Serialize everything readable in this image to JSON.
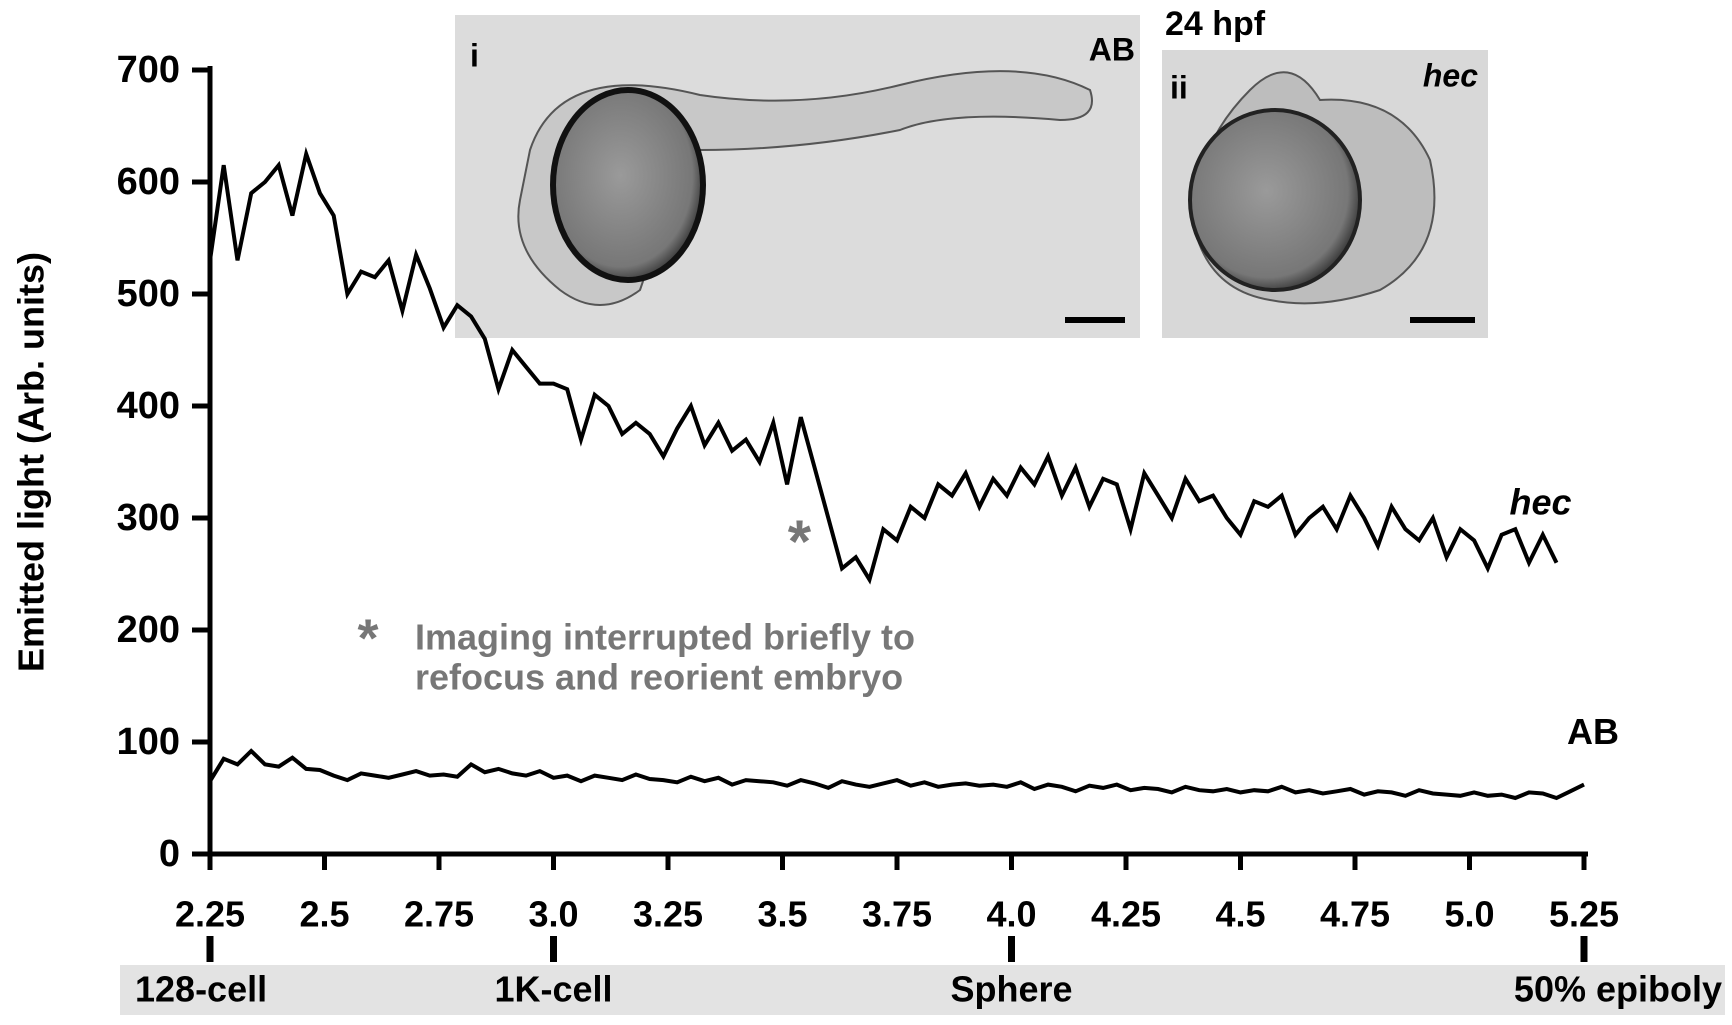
{
  "chart_data": {
    "type": "line",
    "ylabel": "Emitted light (Arb. units)",
    "x": [
      2.25,
      2.28,
      2.31,
      2.34,
      2.37,
      2.4,
      2.43,
      2.46,
      2.49,
      2.52,
      2.55,
      2.58,
      2.61,
      2.64,
      2.67,
      2.7,
      2.73,
      2.76,
      2.79,
      2.82,
      2.85,
      2.88,
      2.91,
      2.94,
      2.97,
      3,
      3.03,
      3.06,
      3.09,
      3.12,
      3.15,
      3.18,
      3.21,
      3.24,
      3.27,
      3.3,
      3.33,
      3.36,
      3.39,
      3.42,
      3.45,
      3.48,
      3.51,
      3.54,
      3.57,
      3.6,
      3.63,
      3.66,
      3.69,
      3.72,
      3.75,
      3.78,
      3.81,
      3.84,
      3.87,
      3.9,
      3.93,
      3.96,
      3.99,
      4.02,
      4.05,
      4.08,
      4.11,
      4.14,
      4.17,
      4.2,
      4.23,
      4.26,
      4.29,
      4.32,
      4.35,
      4.38,
      4.41,
      4.44,
      4.47,
      4.5,
      4.53,
      4.56,
      4.59,
      4.62,
      4.65,
      4.68,
      4.71,
      4.74,
      4.77,
      4.8,
      4.83,
      4.86,
      4.89,
      4.92,
      4.95,
      4.98,
      5.01,
      5.04,
      5.07,
      5.1,
      5.13,
      5.16,
      5.19,
      5.22,
      5.25
    ],
    "series": [
      {
        "name": "hec",
        "color": "#000000",
        "values": [
          530,
          615,
          530,
          590,
          600,
          615,
          570,
          625,
          590,
          570,
          500,
          520,
          515,
          530,
          485,
          535,
          505,
          470,
          490,
          480,
          460,
          415,
          450,
          435,
          420,
          420,
          415,
          370,
          410,
          400,
          375,
          385,
          375,
          355,
          380,
          400,
          365,
          385,
          360,
          370,
          350,
          385,
          330,
          390,
          345,
          300,
          255,
          265,
          245,
          290,
          280,
          310,
          300,
          330,
          320,
          340,
          310,
          335,
          320,
          345,
          330,
          355,
          320,
          345,
          310,
          335,
          330,
          290,
          340,
          320,
          300,
          335,
          315,
          320,
          300,
          285,
          315,
          310,
          320,
          285,
          300,
          310,
          290,
          320,
          300,
          275,
          310,
          290,
          280,
          300,
          265,
          290,
          280,
          255,
          285,
          290,
          260,
          285,
          260,
          null,
          null
        ]
      },
      {
        "name": "AB",
        "color": "#000000",
        "values": [
          65,
          85,
          80,
          92,
          80,
          78,
          86,
          76,
          75,
          70,
          66,
          72,
          70,
          68,
          71,
          74,
          70,
          71,
          69,
          80,
          73,
          76,
          72,
          70,
          74,
          68,
          70,
          65,
          70,
          68,
          66,
          71,
          67,
          66,
          64,
          69,
          65,
          68,
          62,
          66,
          65,
          64,
          61,
          66,
          63,
          59,
          65,
          62,
          60,
          63,
          66,
          61,
          64,
          60,
          62,
          63,
          61,
          62,
          60,
          64,
          58,
          62,
          60,
          56,
          61,
          59,
          62,
          57,
          59,
          58,
          55,
          60,
          57,
          56,
          58,
          55,
          57,
          56,
          60,
          55,
          57,
          54,
          56,
          58,
          53,
          56,
          55,
          52,
          57,
          54,
          53,
          52,
          55,
          52,
          53,
          50,
          55,
          54,
          50,
          56,
          62
        ]
      }
    ],
    "xlim": [
      2.25,
      5.25
    ],
    "ylim": [
      0,
      700
    ],
    "xticks": [
      2.25,
      2.5,
      2.75,
      {
        "value": 3,
        "label": "3.0"
      },
      3.25,
      3.5,
      3.75,
      {
        "value": 4,
        "label": "4.0"
      },
      4.25,
      4.5,
      4.75,
      {
        "value": 5,
        "label": "5.0"
      },
      5.25
    ],
    "yticks": [
      0,
      100,
      200,
      300,
      400,
      500,
      600,
      700
    ],
    "stages": [
      {
        "x": 2.25,
        "label": "128-cell"
      },
      {
        "x": 3,
        "label": "1K-cell"
      },
      {
        "x": 4,
        "label": "Sphere"
      },
      {
        "x": 5.25,
        "label": "50% epiboly"
      }
    ],
    "annotation": {
      "asterisk": "*",
      "note": [
        "Imaging interrupted briefly to",
        "refocus and reorient embryo"
      ]
    },
    "insets": {
      "time": "24 hpf",
      "panels": [
        {
          "label": "i",
          "strain": "AB"
        },
        {
          "label": "ii",
          "strain": "hec"
        }
      ]
    }
  }
}
